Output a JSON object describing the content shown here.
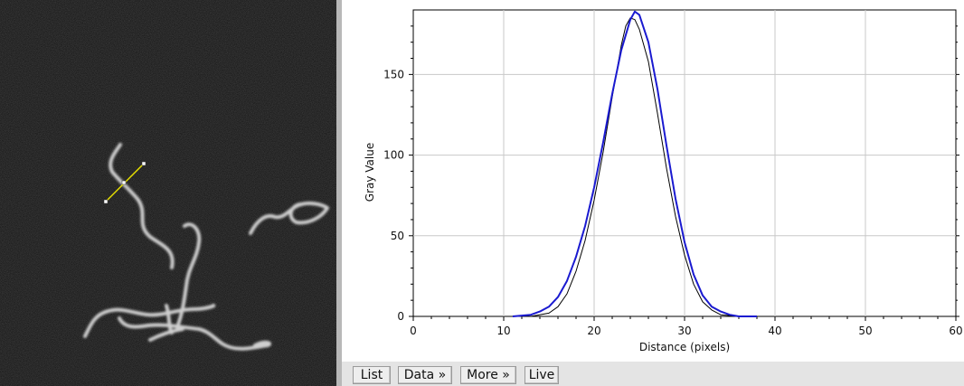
{
  "image": {
    "description_icon": "microtubule-filaments",
    "background_color": "#141414",
    "filament_color": "#cfcfcf",
    "roi_color": "#e8e000"
  },
  "plot": {
    "ylabel": "Gray Value",
    "xlabel": "Distance (pixels)"
  },
  "chart_data": {
    "type": "line",
    "xlabel": "Distance (pixels)",
    "ylabel": "Gray Value",
    "xlim": [
      0,
      60
    ],
    "ylim": [
      0,
      190
    ],
    "x_ticks": [
      0,
      10,
      20,
      30,
      40,
      50,
      60
    ],
    "y_ticks": [
      0,
      50,
      100,
      150
    ],
    "x_tick_labels": [
      "0",
      "10",
      "20",
      "30",
      "40",
      "50",
      "60"
    ],
    "y_tick_labels": [
      "0",
      "50",
      "100",
      "150"
    ],
    "grid": true,
    "series": [
      {
        "color": "#000000",
        "x": [
          11,
          13,
          15,
          16,
          17,
          18,
          19,
          20,
          21,
          22,
          23,
          23.5,
          24,
          24.5,
          25,
          26,
          27,
          28,
          29,
          30,
          31,
          32,
          33,
          34,
          36,
          38
        ],
        "y": [
          0,
          0,
          2,
          6,
          14,
          28,
          47,
          72,
          102,
          136,
          168,
          180,
          185,
          184,
          178,
          158,
          126,
          92,
          62,
          38,
          20,
          9,
          4,
          1,
          0,
          0
        ]
      },
      {
        "color": "#1a1ad0",
        "x": [
          11,
          13,
          14,
          15,
          16,
          17,
          18,
          19,
          20,
          21,
          22,
          23,
          24,
          24.5,
          25,
          26,
          27,
          28,
          29,
          30,
          31,
          32,
          33,
          34,
          35,
          36,
          38
        ],
        "y": [
          0,
          1,
          3,
          6,
          12,
          22,
          37,
          56,
          80,
          108,
          138,
          165,
          184,
          189,
          187,
          170,
          141,
          106,
          73,
          46,
          26,
          13,
          6,
          3,
          1,
          0,
          0
        ]
      }
    ]
  },
  "toolbar": {
    "list_label": "List",
    "data_label": "Data »",
    "more_label": "More »",
    "live_label": "Live"
  }
}
